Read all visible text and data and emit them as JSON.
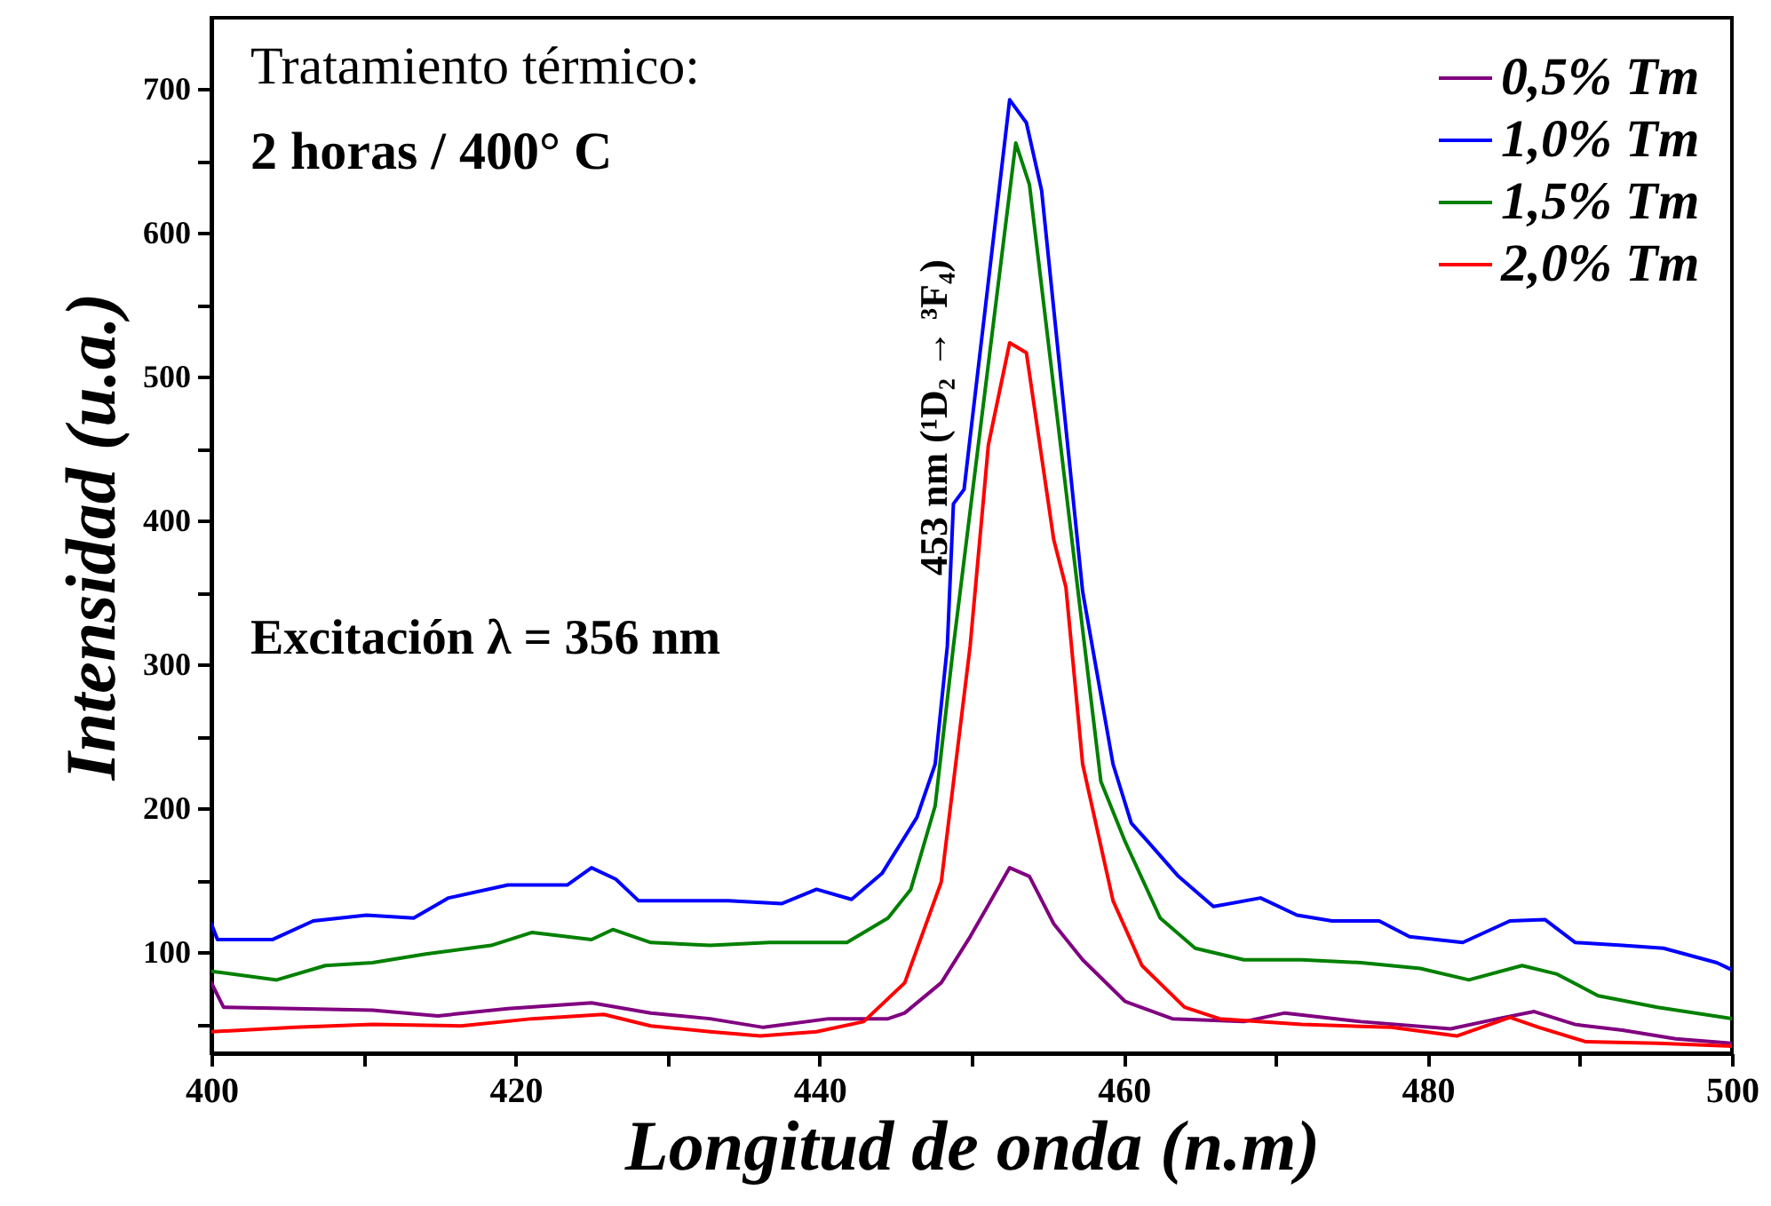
{
  "chart_data": {
    "type": "line",
    "xlabel": "Longitud de onda (n.m)",
    "ylabel": "Intensidad (u.a.)",
    "xlim": [
      400,
      500
    ],
    "xticks": [
      400,
      {
        "value": 410,
        "label": null
      },
      420,
      {
        "value": 430,
        "label": null
      },
      440,
      {
        "value": 450,
        "label": null
      },
      460,
      {
        "value": 470,
        "label": null
      },
      480,
      {
        "value": 490,
        "label": null
      },
      500
    ],
    "ylim": [
      30,
      750
    ],
    "yticks": [
      {
        "value": 50,
        "label": null
      },
      100,
      {
        "value": 150,
        "label": null
      },
      200,
      {
        "value": 250,
        "label": null
      },
      300,
      {
        "value": 350,
        "label": null
      },
      400,
      {
        "value": 450,
        "label": null
      },
      500,
      {
        "value": 550,
        "label": null
      },
      600,
      {
        "value": 650,
        "label": null
      },
      700
    ],
    "grid": false,
    "legend": "top right",
    "marker": "none",
    "line_style": "solid",
    "annotations": [
      "Tratamiento térmico:",
      "2 horas / 400° C",
      "Excitación λ = 356 nm",
      "453 nm (¹D₂ → ³F₄)"
    ],
    "series": [
      {
        "name": "0,5% Tm",
        "color": "#800080",
        "x": [
          400,
          400.8,
          405.5,
          410.6,
          414.9,
          419.5,
          425,
          428.9,
          432.8,
          436.3,
          440.6,
          444.5,
          445.6,
          448,
          449.9,
          452.5,
          453.8,
          455.4,
          457.3,
          460.1,
          463.2,
          467.9,
          470.6,
          475.6,
          481.5,
          484.6,
          487,
          489.7,
          492.8,
          496.3,
          500
        ],
        "values": [
          79,
          62,
          61,
          60,
          56,
          61,
          65,
          58,
          54,
          48,
          54,
          54,
          58,
          79,
          111,
          159,
          153,
          120,
          95,
          66,
          54,
          52,
          58,
          52,
          47,
          54,
          59,
          50,
          46,
          40,
          37
        ]
      },
      {
        "name": "1,0% Tm",
        "color": "#0000ff",
        "x": [
          400,
          400.4,
          404,
          406.7,
          410.2,
          413.3,
          415.6,
          419.5,
          423.4,
          425,
          426.6,
          428.1,
          430.8,
          434,
          437.5,
          439.8,
          442.1,
          444.1,
          446.4,
          447.6,
          448.4,
          448.8,
          449.5,
          452.5,
          453.6,
          454.6,
          457.3,
          459.3,
          460.5,
          461.6,
          463.6,
          465.9,
          469,
          471.4,
          473.7,
          476.8,
          478.8,
          482.3,
          485.4,
          487.7,
          489.7,
          492.8,
          495.5,
          499,
          500
        ],
        "values": [
          120,
          109,
          109,
          122,
          126,
          124,
          138,
          147,
          147,
          159,
          151,
          136,
          136,
          136,
          134,
          144,
          137,
          155,
          194,
          231,
          313,
          412,
          422,
          693,
          677,
          630,
          351,
          231,
          190,
          177,
          153,
          132,
          138,
          126,
          122,
          122,
          111,
          107,
          122,
          123,
          107,
          105,
          103,
          93,
          88
        ]
      },
      {
        "name": "1,5% Tm",
        "color": "#008000",
        "x": [
          400,
          404.3,
          407.5,
          410.6,
          414.1,
          418.4,
          421.1,
          425,
          426.4,
          428.9,
          432.8,
          436.7,
          441.8,
          444.5,
          446,
          447.6,
          448.8,
          452.9,
          453.8,
          457,
          458.5,
          460.1,
          462.4,
          464.7,
          467.9,
          471.7,
          475.6,
          479.5,
          482.7,
          486.2,
          488.5,
          491.2,
          495.1,
          500
        ],
        "values": [
          87,
          81,
          91,
          93,
          99,
          105,
          114,
          109,
          116,
          107,
          105,
          107,
          107,
          124,
          144,
          202,
          313,
          663,
          634,
          351,
          219,
          177,
          124,
          103,
          95,
          95,
          93,
          89,
          81,
          91,
          85,
          70,
          62,
          54
        ]
      },
      {
        "name": "2,0% Tm",
        "color": "#ff0000",
        "x": [
          400,
          405.5,
          410.6,
          416.4,
          421.1,
          425.8,
          428.9,
          432.8,
          436.1,
          439.8,
          442.9,
          445.6,
          448,
          449.9,
          451.1,
          452.5,
          453.6,
          455.4,
          456.2,
          457.3,
          459.3,
          461.2,
          464,
          466.3,
          471.7,
          477.6,
          481.9,
          485.4,
          487.3,
          490.4,
          495.1,
          500
        ],
        "values": [
          45,
          48,
          50,
          49,
          54,
          57,
          49,
          45,
          42,
          45,
          52,
          79,
          149,
          313,
          453,
          524,
          517,
          387,
          354,
          231,
          136,
          91,
          62,
          54,
          50,
          48,
          42,
          55,
          48,
          38,
          37,
          35
        ]
      }
    ]
  }
}
